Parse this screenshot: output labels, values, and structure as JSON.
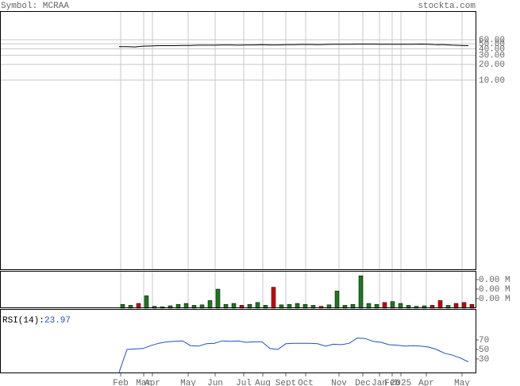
{
  "header": {
    "symbol": "Symbol: MCRAA",
    "site": "stockta.com"
  },
  "chart_data": {
    "type": "stock",
    "x": [
      0,
      1,
      2,
      3,
      4,
      5,
      6,
      7,
      8,
      9,
      10,
      11,
      12,
      13,
      14,
      15,
      16,
      17,
      18,
      19,
      20,
      21,
      22,
      23,
      24,
      25,
      26,
      27,
      28,
      29,
      30,
      31,
      32,
      33,
      34,
      35,
      36,
      37,
      38,
      39,
      40,
      41,
      42,
      43,
      44
    ],
    "xlim": [
      0,
      45
    ],
    "xticks": [
      {
        "value": 0.2,
        "label": "Feb"
      },
      {
        "value": 3.1,
        "label": "Mar"
      },
      {
        "value": 4.2,
        "label": "Apr"
      },
      {
        "value": 8.7,
        "label": "May"
      },
      {
        "value": 12.1,
        "label": "Jun"
      },
      {
        "value": 15.7,
        "label": "Jul"
      },
      {
        "value": 18.1,
        "label": "Aug"
      },
      {
        "value": 21,
        "label": "Sept"
      },
      {
        "value": 23.5,
        "label": "Oct"
      },
      {
        "value": 27.7,
        "label": "Nov"
      },
      {
        "value": 30.7,
        "label": "Dec"
      },
      {
        "value": 32.8,
        "label": "Jan"
      },
      {
        "value": 34.4,
        "label": "Feb"
      },
      {
        "value": 35.5,
        "label": "2025"
      },
      {
        "value": 38.7,
        "label": "Apr"
      },
      {
        "value": 43.2,
        "label": "May"
      }
    ],
    "price": {
      "color": "#000000",
      "log_scale": true,
      "ylim": [
        0.0022,
        213
      ],
      "yticks": [
        {
          "value": 60,
          "label": "60.00"
        },
        {
          "value": 50,
          "label": "50.00"
        },
        {
          "value": 40,
          "label": "40.00"
        },
        {
          "value": 30,
          "label": "30.00"
        },
        {
          "value": 20,
          "label": "20.00"
        },
        {
          "value": 10,
          "label": "10.00"
        }
      ],
      "values": [
        44,
        44,
        43.5,
        45,
        45.5,
        46,
        46,
        46,
        46.5,
        46.5,
        47,
        47,
        47,
        47.5,
        47.5,
        47,
        47.5,
        47.5,
        48,
        47.5,
        47.5,
        48,
        48,
        48.5,
        48.5,
        48,
        48.5,
        49,
        49,
        49,
        49.5,
        49.5,
        49.5,
        49,
        49,
        49,
        49,
        49,
        49.5,
        49,
        48,
        48,
        47,
        46.5,
        46
      ]
    },
    "volume": {
      "up_color": "#1a7a1a",
      "down_color": "#cc0000",
      "ylim": [
        0,
        3920
      ],
      "yticks": [
        {
          "value": 3000,
          "label": "0.00 M"
        },
        {
          "value": 2000,
          "label": "0.00 M"
        },
        {
          "value": 1000,
          "label": "0.00 M"
        }
      ],
      "values": [
        400,
        300,
        500,
        1300,
        200,
        150,
        250,
        400,
        500,
        300,
        350,
        800,
        2000,
        400,
        500,
        300,
        400,
        600,
        300,
        2200,
        350,
        400,
        500,
        400,
        300,
        200,
        350,
        1800,
        300,
        400,
        3400,
        500,
        400,
        600,
        700,
        500,
        300,
        200,
        250,
        300,
        800,
        300,
        500,
        600,
        400
      ]
    },
    "rsi": {
      "label": "RSI(14):",
      "current": 23.97,
      "color": "#2050c0",
      "ylim": [
        0,
        135
      ],
      "yticks": [
        70,
        50,
        30
      ],
      "values": [
        2,
        50,
        51,
        52,
        58,
        63,
        66,
        67,
        68,
        58,
        57,
        62,
        63,
        68,
        67,
        68,
        65,
        66,
        66,
        52,
        50,
        62,
        63,
        63,
        63,
        62,
        57,
        61,
        60,
        63,
        74,
        73,
        67,
        65,
        60,
        59,
        57,
        58,
        57,
        55,
        50,
        42,
        38,
        32,
        23.97
      ]
    }
  }
}
